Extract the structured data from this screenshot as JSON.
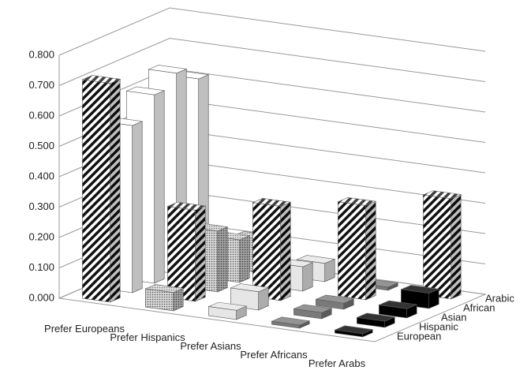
{
  "chart_data": {
    "type": "bar3d",
    "categories": [
      "Prefer Europeans",
      "Prefer Hispanics",
      "Prefer Asians",
      "Prefer Africans",
      "Prefer Arabs"
    ],
    "series": [
      {
        "name": "European",
        "colors": [
          "hatched",
          "dotted",
          "#e6e6e6",
          "#7a7a7a",
          "#000000"
        ],
        "values": [
          0.72,
          0.06,
          0.03,
          0.01,
          0.01
        ]
      },
      {
        "name": "Hispanic",
        "colors": [
          "#ffffff",
          "hatched",
          "#e6e6e6",
          "#7a7a7a",
          "#000000"
        ],
        "values": [
          0.55,
          0.3,
          0.06,
          0.02,
          0.02
        ]
      },
      {
        "name": "Asian",
        "colors": [
          "#ffffff",
          "dotted",
          "hatched",
          "#7a7a7a",
          "#000000"
        ],
        "values": [
          0.62,
          0.2,
          0.31,
          0.02,
          0.03
        ]
      },
      {
        "name": "African",
        "colors": [
          "#ffffff",
          "dotted",
          "#e6e6e6",
          "hatched",
          "#000000"
        ],
        "values": [
          0.66,
          0.14,
          0.08,
          0.31,
          0.05
        ]
      },
      {
        "name": "Arabic",
        "colors": [
          "#ffffff",
          "dotted",
          "#e6e6e6",
          "#7a7a7a",
          "hatched"
        ],
        "values": [
          0.61,
          0.11,
          0.06,
          0.01,
          0.33
        ]
      }
    ],
    "ylim": [
      0,
      0.8
    ],
    "yticks": [
      {
        "value": 0,
        "label": "0.000"
      },
      {
        "value": 0.1,
        "label": "0.100"
      },
      {
        "value": 0.2,
        "label": "0.200"
      },
      {
        "value": 0.3,
        "label": "0.300"
      },
      {
        "value": 0.4,
        "label": "0.400"
      },
      {
        "value": 0.5,
        "label": "0.500"
      },
      {
        "value": 0.6,
        "label": "0.600"
      },
      {
        "value": 0.7,
        "label": "0.700"
      },
      {
        "value": 0.8,
        "label": "0.800"
      }
    ],
    "grid": true
  }
}
